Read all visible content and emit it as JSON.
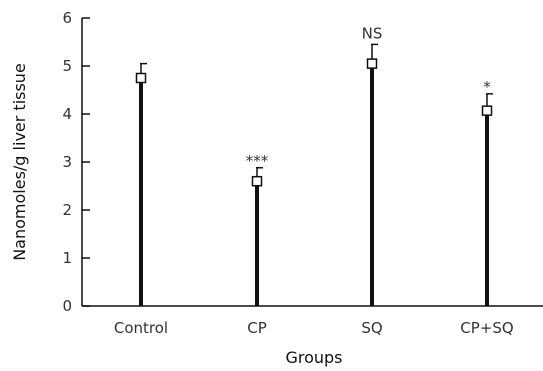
{
  "chart_data": {
    "type": "bar",
    "title": "",
    "xlabel": "Groups",
    "ylabel": "Nanomoles/g liver tissue",
    "ylim": [
      0,
      6
    ],
    "yticks": [
      "0",
      "1",
      "2",
      "3",
      "4",
      "5",
      "6"
    ],
    "categories": [
      "Control",
      "CP",
      "SQ",
      "CP+SQ"
    ],
    "values": [
      4.75,
      2.6,
      5.05,
      4.07
    ],
    "error_upper": [
      0.3,
      0.28,
      0.4,
      0.35
    ],
    "annotations": [
      "",
      "***",
      "NS",
      "*"
    ],
    "grid": false,
    "legend": "none",
    "colors": {
      "bar": "#111111",
      "axis": "#111111",
      "marker_fill": "#ffffff"
    }
  }
}
